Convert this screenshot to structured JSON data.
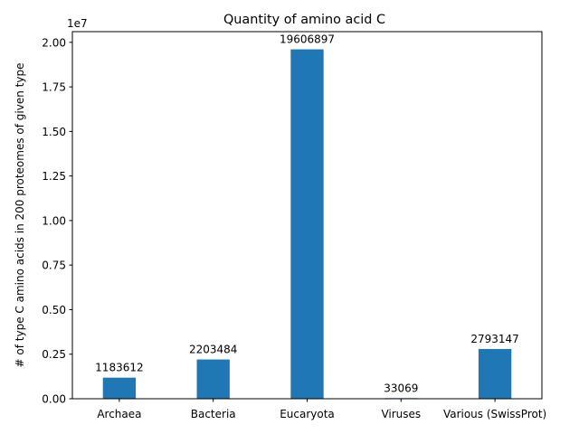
{
  "chart_data": {
    "type": "bar",
    "title": "Quantity of amino acid C",
    "xlabel": "",
    "ylabel": "# of type C amino acids in 200 proteomes of given type",
    "offset_label": "1e7",
    "categories": [
      "Archaea",
      "Bacteria",
      "Eucaryota",
      "Viruses",
      "Various (SwissProt)"
    ],
    "values": [
      1183612,
      2203484,
      19606897,
      33069,
      2793147
    ],
    "value_labels": [
      "1183612",
      "2203484",
      "19606897",
      "33069",
      "2793147"
    ],
    "ylim": [
      0,
      20600000
    ],
    "yticks": [
      0,
      2500000,
      5000000,
      7500000,
      10000000,
      12500000,
      15000000,
      17500000,
      20000000
    ],
    "ytick_labels": [
      "0.00",
      "0.25",
      "0.50",
      "0.75",
      "1.00",
      "1.25",
      "1.50",
      "1.75",
      "2.00"
    ],
    "bar_color": "#1f77b4",
    "grid": false,
    "legend": "none"
  }
}
